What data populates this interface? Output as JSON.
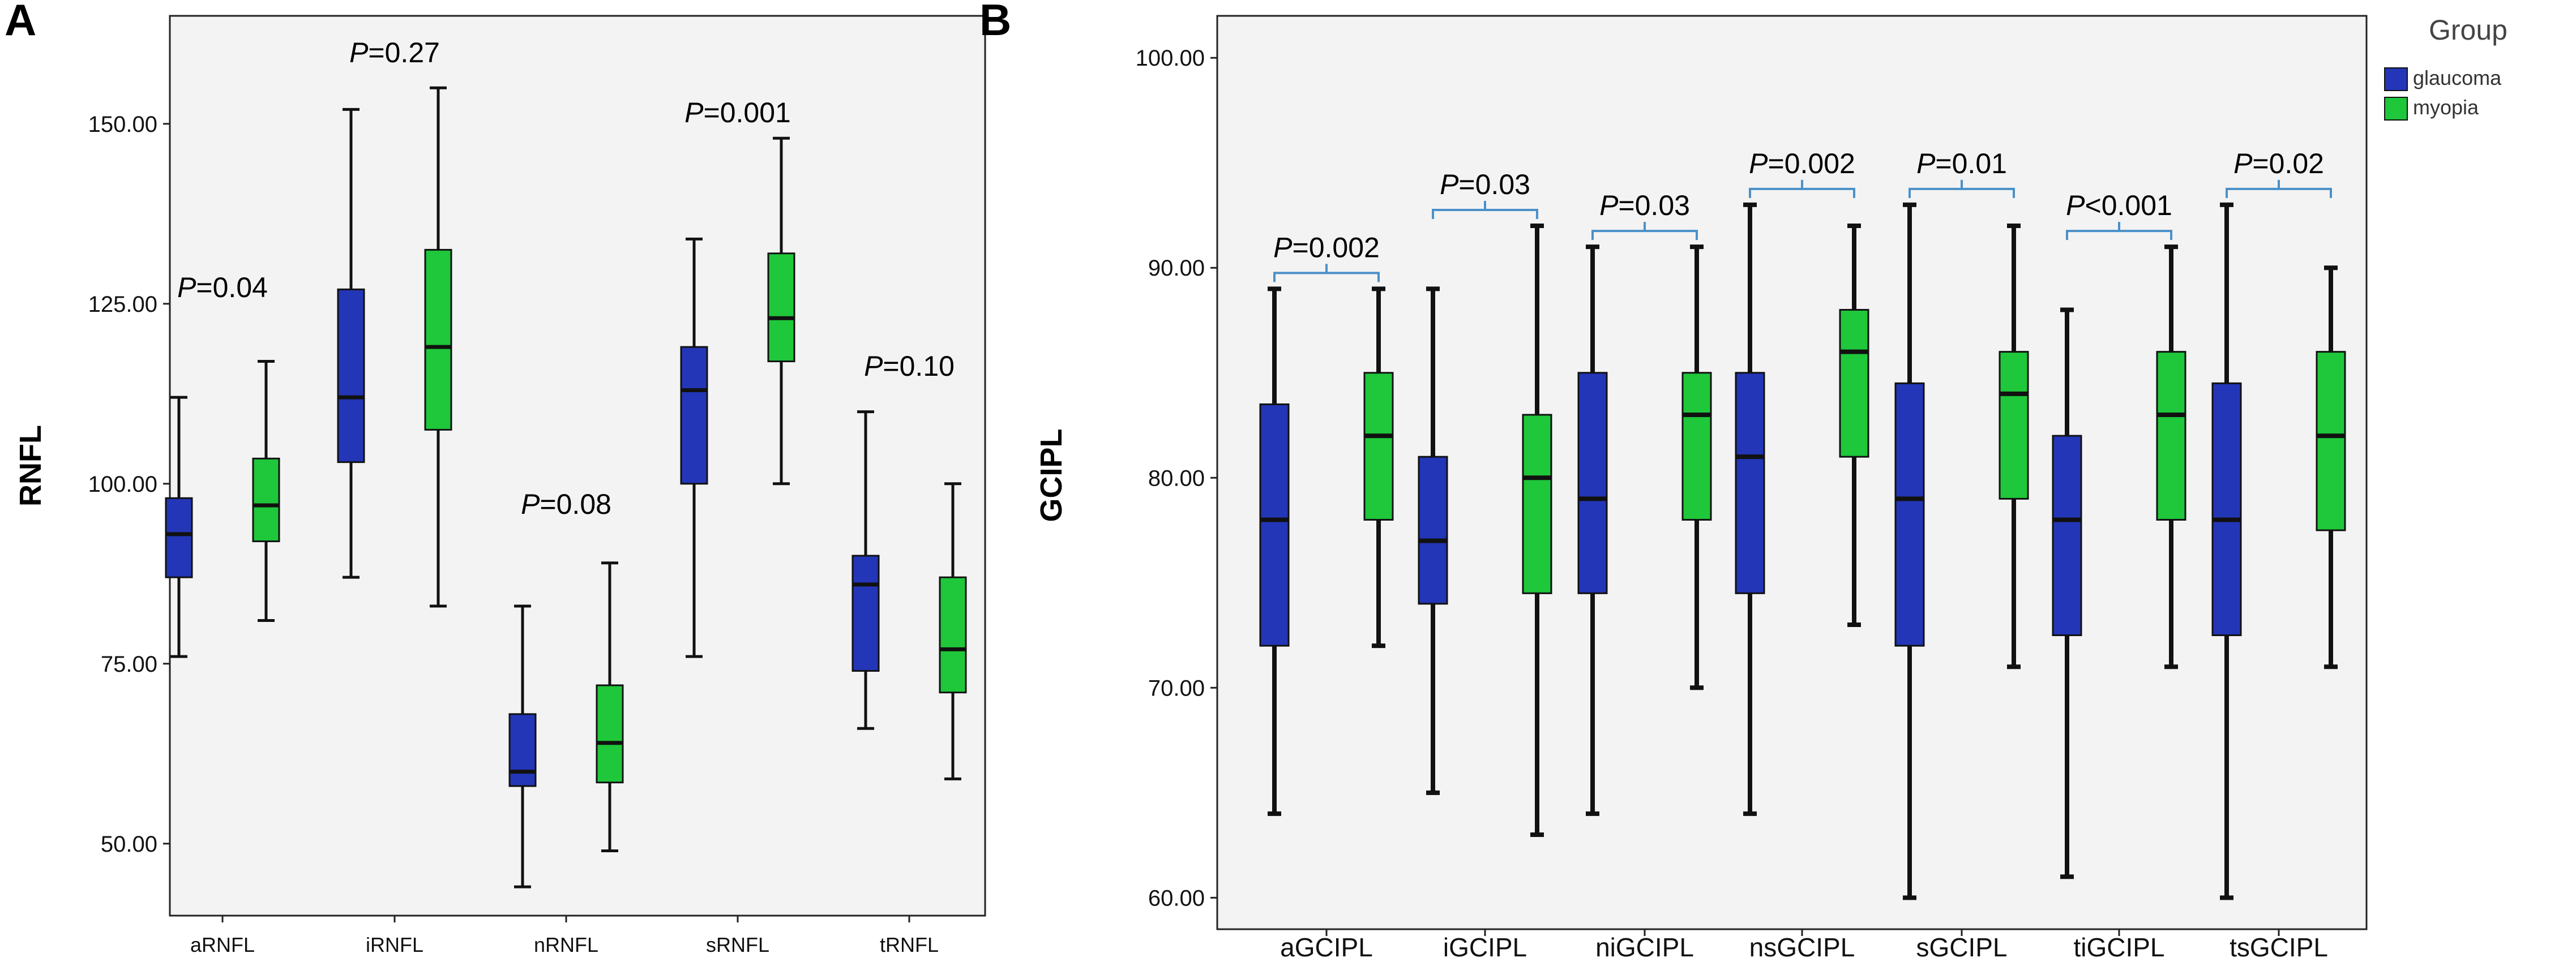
{
  "chart_data": [
    {
      "type": "boxplot",
      "panel_label": "A",
      "ylabel": "RNFL",
      "xlabel": "",
      "ylim": [
        40,
        165
      ],
      "yticks": [
        50,
        75,
        100,
        125,
        150
      ],
      "ytick_labels": [
        "50.00",
        "75.00",
        "100.00",
        "125.00",
        "150.00"
      ],
      "categories": [
        "aRNFL",
        "iRNFL",
        "nRNFL",
        "sRNFL",
        "tRNFL"
      ],
      "series": [
        {
          "name": "glaucoma",
          "color": "#2336b7",
          "boxes": [
            {
              "min": 76,
              "q1": 87,
              "median": 93,
              "q3": 98,
              "max": 112
            },
            {
              "min": 87,
              "q1": 103,
              "median": 112,
              "q3": 127,
              "max": 152
            },
            {
              "min": 44,
              "q1": 58,
              "median": 60,
              "q3": 68,
              "max": 83
            },
            {
              "min": 76,
              "q1": 100,
              "median": 113,
              "q3": 119,
              "max": 134
            },
            {
              "min": 66,
              "q1": 74,
              "median": 86,
              "q3": 90,
              "max": 110
            }
          ]
        },
        {
          "name": "myopia",
          "color": "#1fc73a",
          "boxes": [
            {
              "min": 81,
              "q1": 92,
              "median": 97,
              "q3": 103.5,
              "max": 117
            },
            {
              "min": 83,
              "q1": 107.5,
              "median": 119,
              "q3": 132.5,
              "max": 155
            },
            {
              "min": 49,
              "q1": 58.5,
              "median": 64,
              "q3": 72,
              "max": 89
            },
            {
              "min": 100,
              "q1": 117,
              "median": 123,
              "q3": 132,
              "max": 148
            },
            {
              "min": 59,
              "q1": 71,
              "median": 77,
              "q3": 87,
              "max": 100
            }
          ]
        }
      ],
      "annotations": [
        {
          "category": "aRNFL",
          "label": "=0.04"
        },
        {
          "category": "iRNFL",
          "label": "=0.27"
        },
        {
          "category": "nRNFL",
          "label": "=0.08"
        },
        {
          "category": "sRNFL",
          "label": "=0.001"
        },
        {
          "category": "tRNFL",
          "label": "=0.10"
        }
      ],
      "p_symbol": "P"
    },
    {
      "type": "boxplot",
      "panel_label": "B",
      "ylabel": "GCIPL",
      "xlabel": "",
      "ylim": [
        58.5,
        102
      ],
      "yticks": [
        60,
        70,
        80,
        90,
        100
      ],
      "ytick_labels": [
        "60.00",
        "70.00",
        "80.00",
        "90.00",
        "100.00"
      ],
      "categories": [
        "aGCIPL",
        "iGCIPL",
        "niGCIPL",
        "nsGCIPL",
        "sGCIPL",
        "tiGCIPL",
        "tsGCIPL"
      ],
      "series": [
        {
          "name": "glaucoma",
          "color": "#2336b7",
          "boxes": [
            {
              "min": 64,
              "q1": 72,
              "median": 78,
              "q3": 83.5,
              "max": 89
            },
            {
              "min": 65,
              "q1": 74,
              "median": 77,
              "q3": 81,
              "max": 89
            },
            {
              "min": 64,
              "q1": 74.5,
              "median": 79,
              "q3": 85,
              "max": 91
            },
            {
              "min": 64,
              "q1": 74.5,
              "median": 81,
              "q3": 85,
              "max": 93
            },
            {
              "min": 60,
              "q1": 72,
              "median": 79,
              "q3": 84.5,
              "max": 93
            },
            {
              "min": 61,
              "q1": 72.5,
              "median": 78,
              "q3": 82,
              "max": 88
            },
            {
              "min": 60,
              "q1": 72.5,
              "median": 78,
              "q3": 84.5,
              "max": 93
            }
          ]
        },
        {
          "name": "myopia",
          "color": "#1fc73a",
          "boxes": [
            {
              "min": 72,
              "q1": 78,
              "median": 82,
              "q3": 85,
              "max": 89
            },
            {
              "min": 63,
              "q1": 74.5,
              "median": 80,
              "q3": 83,
              "max": 92
            },
            {
              "min": 70,
              "q1": 78,
              "median": 83,
              "q3": 85,
              "max": 91
            },
            {
              "min": 73,
              "q1": 81,
              "median": 86,
              "q3": 88,
              "max": 92
            },
            {
              "min": 71,
              "q1": 79,
              "median": 84,
              "q3": 86,
              "max": 92
            },
            {
              "min": 71,
              "q1": 78,
              "median": 83,
              "q3": 86,
              "max": 91
            },
            {
              "min": 71,
              "q1": 77.5,
              "median": 82,
              "q3": 86,
              "max": 90
            }
          ]
        }
      ],
      "annotations": [
        {
          "category": "aGCIPL",
          "label": "=0.002"
        },
        {
          "category": "iGCIPL",
          "label": "=0.03"
        },
        {
          "category": "niGCIPL",
          "label": "=0.03"
        },
        {
          "category": "nsGCIPL",
          "label": "=0.002"
        },
        {
          "category": "sGCIPL",
          "label": "=0.01"
        },
        {
          "category": "tiGCIPL",
          "label": "<0.001"
        },
        {
          "category": "tsGCIPL",
          "label": "=0.02"
        }
      ],
      "p_symbol": "P",
      "legend": {
        "title": "Group",
        "placement": "top-right-outside",
        "entries": [
          "glaucoma",
          "myopia"
        ]
      }
    }
  ]
}
